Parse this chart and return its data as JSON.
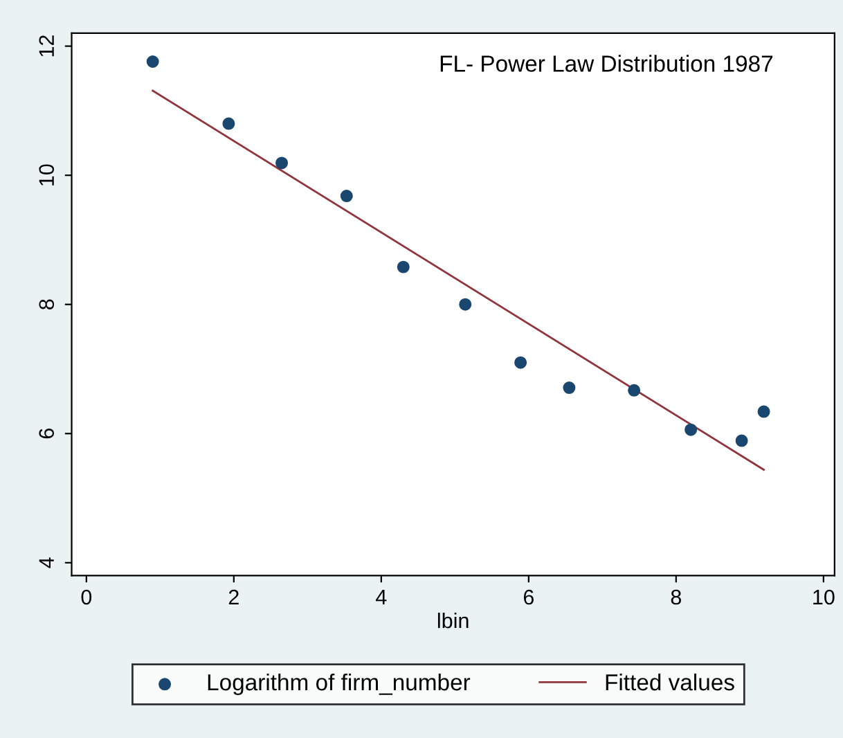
{
  "chart_data": {
    "type": "scatter",
    "title": "FL- Power Law Distribution 1987",
    "xlabel": "lbin",
    "series": [
      {
        "name": "Logarithm of firm_number",
        "color": "#1a476f",
        "marker": "circle",
        "x": [
          0.9,
          1.93,
          2.65,
          3.53,
          4.3,
          5.14,
          5.89,
          6.55,
          7.43,
          8.2,
          8.89,
          9.19
        ],
        "values": [
          11.76,
          10.8,
          10.19,
          9.68,
          8.58,
          8.0,
          7.1,
          6.71,
          6.67,
          6.06,
          5.89,
          6.34
        ]
      },
      {
        "name": "Fitted values",
        "type": "line",
        "color": "#90353b",
        "x": [
          0.9,
          9.19
        ],
        "values": [
          11.31,
          5.44
        ]
      }
    ],
    "xlim": [
      -0.2,
      10.15
    ],
    "ylim": [
      3.8,
      12.2
    ],
    "xticks": [
      0,
      2,
      4,
      6,
      8,
      10
    ],
    "yticks": [
      4,
      6,
      8,
      10,
      12
    ],
    "grid": false,
    "legend": "bottom"
  }
}
